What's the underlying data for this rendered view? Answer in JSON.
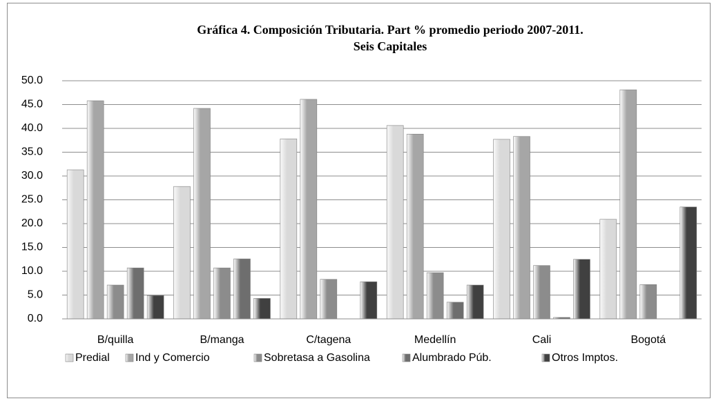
{
  "chart_data": {
    "type": "bar",
    "title": "Gráfica 4. Composición Tributaria. Part % promedio periodo 2007-2011.",
    "subtitle": "Seis Capitales",
    "categories": [
      "B/quilla",
      "B/manga",
      "C/tagena",
      "Medellín",
      "Cali",
      "Bogotá"
    ],
    "series": [
      {
        "name": "Predial",
        "color": "#d9d9d9",
        "values": [
          31.3,
          27.8,
          37.8,
          40.6,
          37.7,
          20.9
        ]
      },
      {
        "name": "Ind y Comercio",
        "color": "#a6a6a6",
        "values": [
          45.8,
          44.2,
          46.1,
          38.8,
          38.3,
          48.1
        ]
      },
      {
        "name": "Sobretasa a Gasolina",
        "color": "#8c8c8c",
        "values": [
          7.1,
          10.7,
          8.3,
          9.7,
          11.2,
          7.2
        ]
      },
      {
        "name": "Alumbrado Púb.",
        "color": "#6e6e6e",
        "values": [
          10.7,
          12.6,
          0,
          3.5,
          0.3,
          0
        ]
      },
      {
        "name": "Otros Imptos.",
        "color": "#404040",
        "values": [
          4.9,
          4.3,
          7.8,
          7.1,
          12.5,
          23.5
        ]
      }
    ],
    "ylim": [
      0,
      50
    ],
    "yticks": [
      {
        "value": 0,
        "label": "0.0"
      },
      {
        "value": 5,
        "label": "5.0"
      },
      {
        "value": 10,
        "label": "10.0"
      },
      {
        "value": 15,
        "label": "15.0"
      },
      {
        "value": 20,
        "label": "20.0"
      },
      {
        "value": 25,
        "label": "25.0"
      },
      {
        "value": 30,
        "label": "30.0"
      },
      {
        "value": 35,
        "label": "35.0"
      },
      {
        "value": 40,
        "label": "40.0"
      },
      {
        "value": 45,
        "label": "45.0"
      },
      {
        "value": 50,
        "label": "50.0"
      }
    ],
    "grid": true,
    "legend": "bottom"
  }
}
